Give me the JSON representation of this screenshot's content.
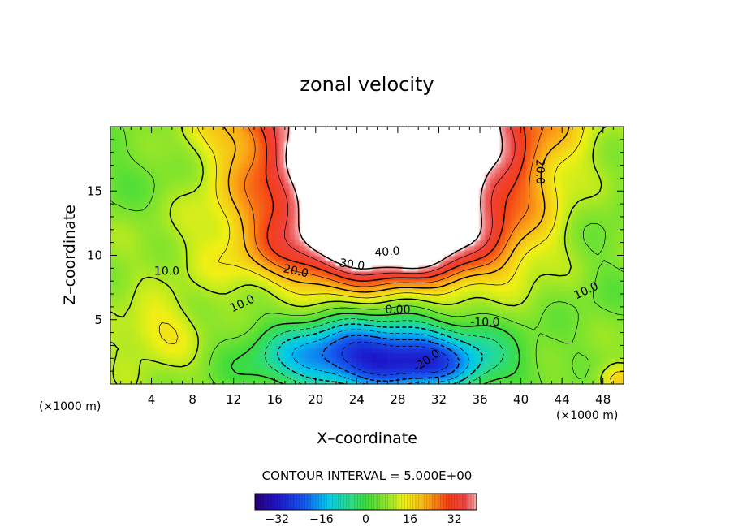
{
  "chart_data": {
    "type": "heatmap",
    "title": "zonal velocity",
    "xlabel": "X–coordinate",
    "ylabel": "Z–coordinate",
    "x_unit_note": "(×1000 m)",
    "xlim": [
      0,
      50
    ],
    "ylim": [
      0,
      20
    ],
    "x_ticks": [
      4,
      8,
      12,
      16,
      20,
      24,
      28,
      32,
      36,
      40,
      44,
      48
    ],
    "y_ticks": [
      5,
      10,
      15
    ],
    "contour_interval_text": "CONTOUR INTERVAL = 5.000E+00",
    "contour_interval": 5.0,
    "contour_labels": [
      "40.0",
      "30.0",
      "20.0",
      "10.0",
      "10.0",
      "10.0",
      "0.00",
      "-10.0",
      "-20.0",
      "20.0"
    ],
    "colorbar": {
      "range": [
        -40,
        40
      ],
      "ticks": [
        -32,
        -16,
        0,
        16,
        32
      ],
      "tick_labels": [
        "−32",
        "−16",
        "0",
        "16",
        "32"
      ]
    },
    "colors": {
      "min": "#2a10a0",
      "mid": "#30d050",
      "max": "#f4a0a0",
      "above_max": "#ffffff"
    },
    "features": [
      {
        "kind": "jet_max",
        "x": 27,
        "z": 15,
        "value": 45
      },
      {
        "kind": "reversed_flow_min",
        "x": 26,
        "z": 2,
        "value": -26
      },
      {
        "kind": "local_max",
        "x": 5,
        "z": 4,
        "value": 14
      }
    ]
  }
}
